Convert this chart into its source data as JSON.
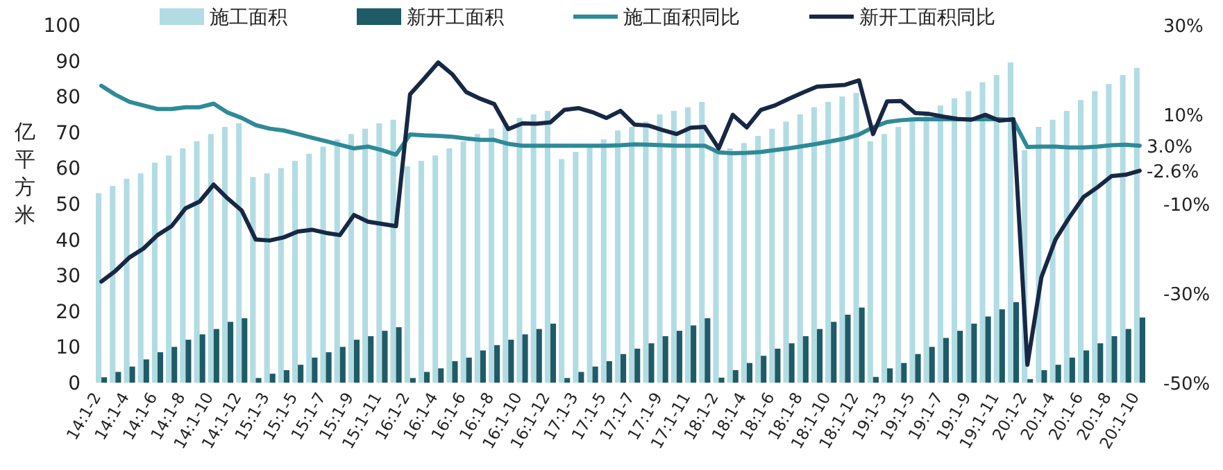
{
  "chart_data": {
    "type": "bar",
    "ylabel": "亿平方米",
    "legend": "top",
    "categories": [
      "14:1-2",
      null,
      "14:1-4",
      null,
      "14:1-6",
      null,
      "14:1-8",
      null,
      "14:1-10",
      null,
      "14:1-12",
      null,
      "15:1-3",
      null,
      "15:1-5",
      null,
      "15:1-7",
      null,
      "15:1-9",
      null,
      "15:1-11",
      null,
      "16:1-2",
      null,
      "16:1-4",
      null,
      "16:1-6",
      null,
      "16:1-8",
      null,
      "16:1-10",
      null,
      "16:1-12",
      null,
      "17:1-3",
      null,
      "17:1-5",
      null,
      "17:1-7",
      null,
      "17:1-9",
      null,
      "17:1-11",
      null,
      "18:1-2",
      null,
      "18:1-4",
      null,
      "18:1-6",
      null,
      "18:1-8",
      null,
      "18:1-10",
      null,
      "18:1-12",
      null,
      "19:1-3",
      null,
      "19:1-5",
      null,
      "19:1-7",
      null,
      "19:1-9",
      null,
      "19:1-11",
      null,
      "20:1-2",
      null,
      "20:1-4",
      null,
      "20:1-6",
      null,
      "20:1-8",
      null,
      "20:1-10"
    ],
    "ylim": [
      0,
      100
    ],
    "yticks": [
      0,
      10,
      20,
      30,
      40,
      50,
      60,
      70,
      80,
      90,
      100
    ],
    "y2lim": [
      -50,
      30
    ],
    "y2ticks": [
      {
        "value": -50,
        "label": "-50%"
      },
      {
        "value": -30,
        "label": "-30%"
      },
      {
        "value": -10,
        "label": "-10%"
      },
      {
        "value": 10,
        "label": "10%"
      },
      {
        "value": 30,
        "label": "30%"
      }
    ],
    "series": [
      {
        "name": "施工面积",
        "color": "#b2dce3",
        "values": [
          53,
          55,
          57,
          58.5,
          61.5,
          63.5,
          65.5,
          67.5,
          69.5,
          71.5,
          72.5,
          57.5,
          58.5,
          60,
          62,
          64,
          66,
          68,
          69.5,
          71,
          72.5,
          73.5,
          60.5,
          62,
          63.5,
          65.5,
          67.5,
          69.5,
          71,
          72.5,
          74,
          75,
          76,
          62.5,
          64.5,
          66,
          68,
          70.5,
          71.5,
          73,
          75,
          76,
          77,
          78.5,
          64.5,
          65.5,
          67,
          69,
          71,
          73,
          75,
          77,
          78.5,
          80,
          81,
          67.5,
          69.5,
          71.5,
          73.5,
          75.5,
          77.5,
          79.5,
          81.5,
          84,
          86,
          89.5,
          65,
          71.5,
          73.5,
          76,
          79,
          81.5,
          83.5,
          86,
          88
        ]
      },
      {
        "name": "新开工面积",
        "color": "#1f5b66",
        "values": [
          1.5,
          3,
          4.5,
          6.5,
          8.5,
          10,
          12,
          13.5,
          15,
          17,
          18,
          1.3,
          2.5,
          3.5,
          5,
          7,
          8.5,
          10,
          12,
          13,
          14.5,
          15.5,
          1.3,
          3,
          4,
          6,
          7,
          9,
          10.5,
          12,
          13.5,
          15,
          16.5,
          1.3,
          3,
          4.5,
          6,
          8,
          9.5,
          11,
          13,
          14.5,
          16,
          18,
          1.4,
          3.5,
          5.5,
          7.5,
          9.5,
          11,
          13,
          15,
          17,
          19,
          21,
          1.6,
          4,
          5.5,
          8,
          10,
          12.5,
          14.5,
          16.5,
          18.5,
          20.5,
          22.5,
          1,
          3.5,
          5,
          7,
          9,
          11,
          13,
          15,
          18.2
        ]
      },
      {
        "name": "施工面积同比",
        "type": "line",
        "axis": "y2",
        "color": "#2f8a97",
        "values": [
          16.4,
          14.4,
          12.8,
          12.0,
          11.2,
          11.2,
          11.6,
          11.6,
          12.4,
          10.4,
          9.2,
          7.6,
          6.8,
          6.4,
          5.6,
          4.8,
          4.0,
          3.2,
          2.4,
          2.8,
          2.0,
          1.0,
          5.5,
          5.3,
          5.2,
          5.0,
          4.6,
          4.3,
          4.3,
          3.4,
          3.0,
          3.0,
          3.0,
          3.0,
          3.0,
          3.0,
          3.0,
          3.1,
          3.3,
          3.2,
          3.1,
          3.0,
          3.0,
          3.0,
          1.5,
          1.3,
          1.4,
          1.6,
          2.0,
          2.4,
          2.9,
          3.4,
          4.0,
          4.6,
          5.5,
          7.1,
          8.3,
          8.7,
          8.9,
          8.9,
          8.9,
          8.9,
          8.9,
          8.9,
          8.9,
          8.7,
          2.7,
          2.8,
          2.8,
          2.6,
          2.6,
          2.8,
          3.1,
          3.2,
          3.0
        ],
        "value_labels": [
          null,
          null,
          null,
          null,
          null,
          null,
          null,
          null,
          null,
          null,
          null,
          null,
          null,
          null,
          null,
          null,
          null,
          null,
          null,
          null,
          null,
          null,
          null,
          null,
          null,
          null,
          null,
          null,
          null,
          null,
          null,
          null,
          null,
          null,
          null,
          null,
          null,
          null,
          null,
          null,
          null,
          null,
          null,
          null,
          null,
          null,
          null,
          null,
          null,
          null,
          null,
          null,
          null,
          null,
          null,
          null,
          null,
          null,
          null,
          null,
          null,
          null,
          null,
          null,
          null,
          null,
          null,
          null,
          null,
          null,
          null,
          null,
          null,
          null,
          "3.0%"
        ]
      },
      {
        "name": "新开工面积同比",
        "type": "line",
        "axis": "y2",
        "color": "#172844",
        "values": [
          -27.4,
          -25,
          -22,
          -20,
          -17,
          -15,
          -11,
          -9.5,
          -5.7,
          -8.8,
          -11.5,
          -18,
          -18.2,
          -17.5,
          -16.2,
          -15.8,
          -16.5,
          -17,
          -12.5,
          -14,
          -14.5,
          -15,
          14.5,
          18,
          21.6,
          19,
          15,
          13.5,
          12.3,
          6.7,
          8,
          7.9,
          8.2,
          11,
          11.4,
          10.5,
          9.2,
          10.8,
          7.7,
          7.5,
          6.5,
          5.6,
          7,
          7.2,
          2.4,
          9.9,
          7.1,
          11,
          12,
          13.5,
          14.9,
          16.2,
          16.4,
          16.6,
          17.6,
          5.6,
          12.9,
          13,
          10.3,
          10.1,
          9.5,
          9,
          8.8,
          9.9,
          8.6,
          8.9,
          -46,
          -26.4,
          -18,
          -13,
          -8.5,
          -6.3,
          -3.8,
          -3.5,
          -2.6
        ],
        "value_labels": [
          null,
          null,
          null,
          null,
          null,
          null,
          null,
          null,
          null,
          null,
          null,
          null,
          null,
          null,
          null,
          null,
          null,
          null,
          null,
          null,
          null,
          null,
          null,
          null,
          null,
          null,
          null,
          null,
          null,
          null,
          null,
          null,
          null,
          null,
          null,
          null,
          null,
          null,
          null,
          null,
          null,
          null,
          null,
          null,
          null,
          null,
          null,
          null,
          null,
          null,
          null,
          null,
          null,
          null,
          null,
          null,
          null,
          null,
          null,
          null,
          null,
          null,
          null,
          null,
          null,
          null,
          null,
          null,
          null,
          null,
          null,
          null,
          null,
          null,
          "-2.6%"
        ]
      }
    ]
  }
}
